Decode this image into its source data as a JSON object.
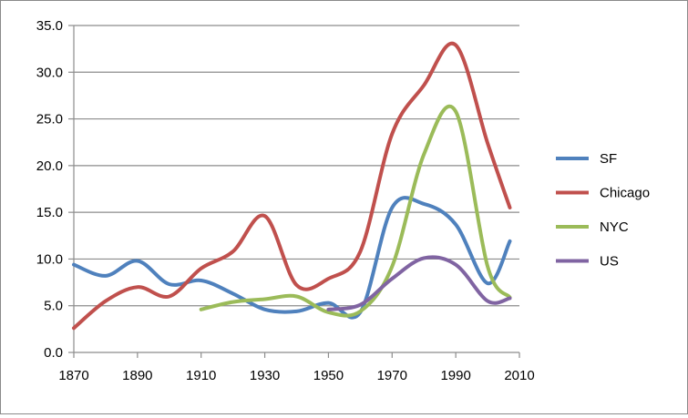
{
  "chart_data": {
    "type": "line",
    "title": "",
    "xlabel": "",
    "ylabel": "",
    "xlim": [
      1870,
      2010
    ],
    "ylim": [
      0,
      35
    ],
    "x_ticks": [
      1870,
      1890,
      1910,
      1930,
      1950,
      1970,
      1990,
      2010
    ],
    "x_tick_labels": [
      "1870",
      "1890",
      "1910",
      "1930",
      "1950",
      "1970",
      "1990",
      "2010"
    ],
    "y_ticks": [
      0,
      5,
      10,
      15,
      20,
      25,
      30,
      35
    ],
    "y_tick_labels": [
      "0.0",
      "5.0",
      "10.0",
      "15.0",
      "20.0",
      "25.0",
      "30.0",
      "35.0"
    ],
    "grid": "horizontal",
    "legend_position": "right",
    "series": [
      {
        "name": "SF",
        "color": "#4F81BD",
        "points": [
          [
            1870,
            9.4
          ],
          [
            1880,
            8.2
          ],
          [
            1890,
            9.8
          ],
          [
            1900,
            7.3
          ],
          [
            1910,
            7.7
          ],
          [
            1920,
            6.3
          ],
          [
            1930,
            4.6
          ],
          [
            1940,
            4.4
          ],
          [
            1950,
            5.3
          ],
          [
            1960,
            4.3
          ],
          [
            1970,
            15.5
          ],
          [
            1980,
            15.9
          ],
          [
            1990,
            13.7
          ],
          [
            2000,
            7.4
          ],
          [
            2007,
            11.9
          ]
        ]
      },
      {
        "name": "Chicago",
        "color": "#C0504D",
        "points": [
          [
            1870,
            2.6
          ],
          [
            1880,
            5.5
          ],
          [
            1890,
            7.0
          ],
          [
            1900,
            6.0
          ],
          [
            1910,
            9.0
          ],
          [
            1920,
            10.8
          ],
          [
            1930,
            14.6
          ],
          [
            1940,
            7.2
          ],
          [
            1950,
            7.9
          ],
          [
            1960,
            10.8
          ],
          [
            1970,
            23.4
          ],
          [
            1980,
            28.6
          ],
          [
            1990,
            32.9
          ],
          [
            2000,
            22.4
          ],
          [
            2007,
            15.5
          ]
        ]
      },
      {
        "name": "NYC",
        "color": "#9BBB59",
        "points": [
          [
            1910,
            4.6
          ],
          [
            1920,
            5.4
          ],
          [
            1930,
            5.7
          ],
          [
            1940,
            6.0
          ],
          [
            1950,
            4.3
          ],
          [
            1960,
            4.4
          ],
          [
            1970,
            9.2
          ],
          [
            1980,
            21.2
          ],
          [
            1990,
            25.8
          ],
          [
            2000,
            9.2
          ],
          [
            2007,
            5.9
          ]
        ]
      },
      {
        "name": "US",
        "color": "#8064A2",
        "points": [
          [
            1950,
            4.6
          ],
          [
            1960,
            5.1
          ],
          [
            1970,
            7.9
          ],
          [
            1980,
            10.1
          ],
          [
            1990,
            9.4
          ],
          [
            2000,
            5.5
          ],
          [
            2007,
            5.8
          ]
        ]
      }
    ]
  }
}
